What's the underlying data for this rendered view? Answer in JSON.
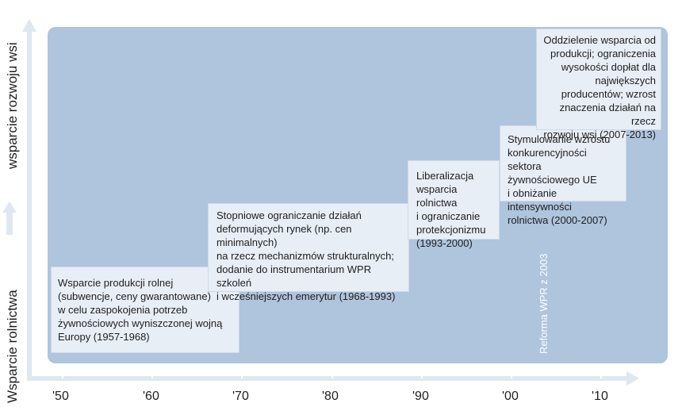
{
  "y_axis": {
    "top_label": "wsparcie rozwoju wsi",
    "bottom_label": "Wsparcie rolnictwa"
  },
  "boxes": [
    "Wsparcie produkcji rolnej\n(subwencje, ceny gwarantowane)\nw celu zaspokojenia potrzeb\nżywnościowych wyniszczonej wojną\nEuropy (1957-1968)",
    "Stopniowe ograniczanie działań\ndeformujących rynek (np. cen minimalnych)\nna rzecz mechanizmów strukturalnych;\ndodanie do instrumentarium WPR szkoleń\ni wcześniejszych emerytur (1968-1993)",
    "Liberalizacja\nwsparcia rolnictwa\ni ograniczanie\nprotekcjonizmu\n(1993-2000)",
    "Stymulowanie wzrostu\nkonkurencyjności sektora\nżywnościowego UE\ni obniżanie intensywności\nrolnictwa (2000-2007)",
    "Oddzielenie wsparcia od\nprodukcji; ograniczenia\nwysokości dopłat dla\nnajwiększych\nproducentów; wzrost\nznaczenia działań na rzecz\nrozwoju wsi (2007-2013)"
  ],
  "reform_label": "Reforma WPR z 2003",
  "x_ticks": [
    "'50",
    "'60",
    "'70",
    "'80",
    "'90",
    "'00",
    "'10"
  ]
}
